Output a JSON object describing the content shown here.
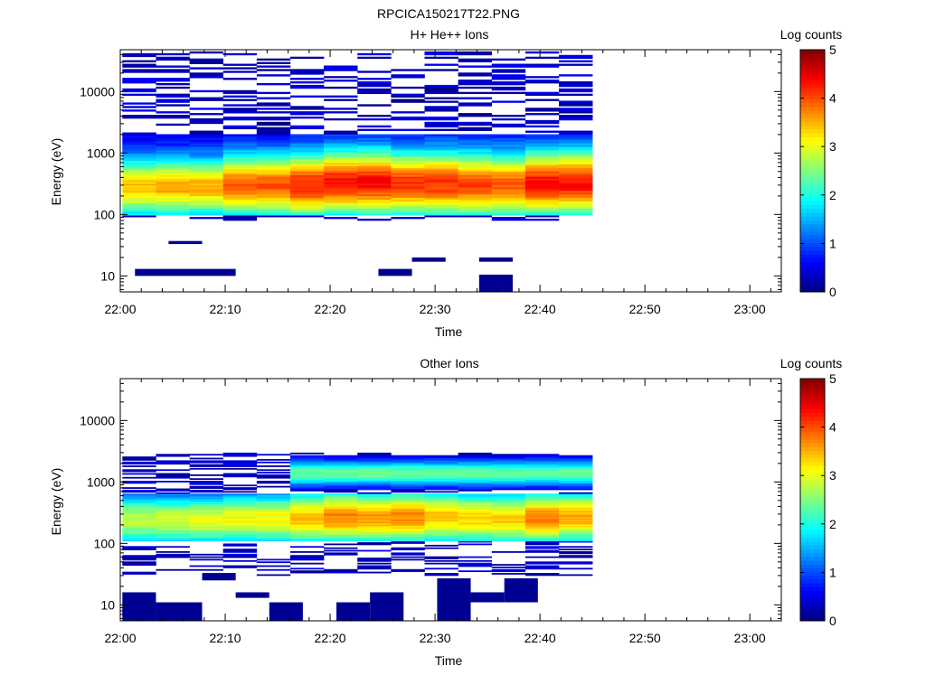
{
  "figure_title": "RPCICA150217T22.PNG",
  "colors": {
    "colormap": [
      "#00007f",
      "#0000ff",
      "#007fff",
      "#00ffff",
      "#7fff7f",
      "#ffff00",
      "#ff7f00",
      "#ff0000",
      "#7f0000"
    ],
    "axis": "#000000",
    "background": "#ffffff"
  },
  "chart_data": [
    {
      "type": "heatmap",
      "title": "H+ He++ Ions",
      "xlabel": "Time",
      "ylabel": "Energy (eV)",
      "colorbar_label": "Log counts",
      "colorbar_range": [
        0,
        5
      ],
      "colorbar_ticks": [
        "0",
        "1",
        "2",
        "3",
        "4",
        "5"
      ],
      "x_ticks": [
        "22:00",
        "22:10",
        "22:20",
        "22:30",
        "22:40",
        "22:50",
        "23:00"
      ],
      "y_ticks": [
        "10",
        "100",
        "1000",
        "10000"
      ],
      "y_scale": "log",
      "ylim": [
        5.5,
        48000
      ],
      "xlim": [
        "22:00",
        "23:03"
      ],
      "time_bins_start": [
        "22:00:12",
        "22:03:24",
        "22:06:36",
        "22:09:48",
        "22:13:00",
        "22:16:12",
        "22:19:24",
        "22:22:36",
        "22:25:48",
        "22:29:00",
        "22:32:12",
        "22:35:24",
        "22:38:36",
        "22:41:48"
      ],
      "profiles": [
        {
          "peak_energy_eV": 280,
          "peak_log_counts": 3.0,
          "width": 0.34
        },
        {
          "peak_energy_eV": 280,
          "peak_log_counts": 3.1,
          "width": 0.34
        },
        {
          "peak_energy_eV": 280,
          "peak_log_counts": 3.1,
          "width": 0.34
        },
        {
          "peak_energy_eV": 300,
          "peak_log_counts": 3.5,
          "width": 0.36
        },
        {
          "peak_energy_eV": 300,
          "peak_log_counts": 3.5,
          "width": 0.36
        },
        {
          "peak_energy_eV": 300,
          "peak_log_counts": 3.8,
          "width": 0.38
        },
        {
          "peak_energy_eV": 330,
          "peak_log_counts": 3.9,
          "width": 0.38
        },
        {
          "peak_energy_eV": 330,
          "peak_log_counts": 3.9,
          "width": 0.38
        },
        {
          "peak_energy_eV": 320,
          "peak_log_counts": 3.7,
          "width": 0.38
        },
        {
          "peak_energy_eV": 320,
          "peak_log_counts": 3.7,
          "width": 0.38
        },
        {
          "peak_energy_eV": 300,
          "peak_log_counts": 3.6,
          "width": 0.38
        },
        {
          "peak_energy_eV": 300,
          "peak_log_counts": 3.5,
          "width": 0.38
        },
        {
          "peak_energy_eV": 320,
          "peak_log_counts": 3.9,
          "width": 0.38
        },
        {
          "peak_energy_eV": 330,
          "peak_log_counts": 3.9,
          "width": 0.38
        }
      ],
      "main_band_range_eV": [
        100,
        2000
      ],
      "sparse_range_eV": [
        80,
        45000
      ],
      "low_energy_patches": [
        {
          "time_start": "22:01:24",
          "time_end": "22:11:00",
          "energy_low_eV": 10,
          "energy_high_eV": 13
        },
        {
          "time_start": "22:04:36",
          "time_end": "22:07:48",
          "energy_low_eV": 33,
          "energy_high_eV": 37
        },
        {
          "time_start": "22:24:36",
          "time_end": "22:27:48",
          "energy_low_eV": 10,
          "energy_high_eV": 13
        },
        {
          "time_start": "22:27:48",
          "time_end": "22:31:00",
          "energy_low_eV": 17,
          "energy_high_eV": 20
        },
        {
          "time_start": "22:34:12",
          "time_end": "22:37:24",
          "energy_low_eV": 17,
          "energy_high_eV": 20
        },
        {
          "time_start": "22:34:12",
          "time_end": "22:37:24",
          "energy_low_eV": 5.5,
          "energy_high_eV": 10.5
        }
      ]
    },
    {
      "type": "heatmap",
      "title": "Other Ions",
      "xlabel": "Time",
      "ylabel": "Energy (eV)",
      "colorbar_label": "Log counts",
      "colorbar_range": [
        0,
        5
      ],
      "colorbar_ticks": [
        "0",
        "1",
        "2",
        "3",
        "4",
        "5"
      ],
      "x_ticks": [
        "22:00",
        "22:10",
        "22:20",
        "22:30",
        "22:40",
        "22:50",
        "23:00"
      ],
      "y_ticks": [
        "10",
        "100",
        "1000",
        "10000"
      ],
      "y_scale": "log",
      "ylim": [
        5.5,
        48000
      ],
      "xlim": [
        "22:00",
        "23:03"
      ],
      "time_bins_start": [
        "22:00:12",
        "22:03:24",
        "22:06:36",
        "22:09:48",
        "22:13:00",
        "22:16:12",
        "22:19:24",
        "22:22:36",
        "22:25:48",
        "22:29:00",
        "22:32:12",
        "22:35:24",
        "22:38:36",
        "22:41:48"
      ],
      "profiles": [
        {
          "peak_energy_eV": 240,
          "peak_log_counts": 2.4,
          "width": 0.28
        },
        {
          "peak_energy_eV": 240,
          "peak_log_counts": 2.5,
          "width": 0.28
        },
        {
          "peak_energy_eV": 240,
          "peak_log_counts": 2.6,
          "width": 0.28
        },
        {
          "peak_energy_eV": 250,
          "peak_log_counts": 2.7,
          "width": 0.28
        },
        {
          "peak_energy_eV": 250,
          "peak_log_counts": 2.7,
          "width": 0.28
        },
        {
          "peak_energy_eV": 260,
          "peak_log_counts": 3.0,
          "width": 0.3
        },
        {
          "peak_energy_eV": 270,
          "peak_log_counts": 3.3,
          "width": 0.3
        },
        {
          "peak_energy_eV": 260,
          "peak_log_counts": 3.2,
          "width": 0.3
        },
        {
          "peak_energy_eV": 270,
          "peak_log_counts": 3.3,
          "width": 0.3
        },
        {
          "peak_energy_eV": 270,
          "peak_log_counts": 3.0,
          "width": 0.3
        },
        {
          "peak_energy_eV": 260,
          "peak_log_counts": 2.9,
          "width": 0.3
        },
        {
          "peak_energy_eV": 250,
          "peak_log_counts": 2.9,
          "width": 0.3
        },
        {
          "peak_energy_eV": 260,
          "peak_log_counts": 3.3,
          "width": 0.3
        },
        {
          "peak_energy_eV": 270,
          "peak_log_counts": 3.1,
          "width": 0.3
        }
      ],
      "upper_band": {
        "start_bin": 5,
        "energy_eV": 1400,
        "peak_log_counts": 2.4,
        "width": 0.16
      },
      "main_band_range_eV": [
        110,
        650
      ],
      "sparse_range_eV": [
        30,
        3000
      ],
      "low_energy_patches": [
        {
          "time_start": "22:00:12",
          "time_end": "22:03:24",
          "energy_low_eV": 5.5,
          "energy_high_eV": 16
        },
        {
          "time_start": "22:03:24",
          "time_end": "22:07:48",
          "energy_low_eV": 5.5,
          "energy_high_eV": 11
        },
        {
          "time_start": "22:07:48",
          "time_end": "22:11:00",
          "energy_low_eV": 25,
          "energy_high_eV": 33
        },
        {
          "time_start": "22:11:00",
          "time_end": "22:14:12",
          "energy_low_eV": 13,
          "energy_high_eV": 16
        },
        {
          "time_start": "22:14:12",
          "time_end": "22:17:24",
          "energy_low_eV": 5.5,
          "energy_high_eV": 11
        },
        {
          "time_start": "22:20:36",
          "time_end": "22:23:48",
          "energy_low_eV": 5.5,
          "energy_high_eV": 11
        },
        {
          "time_start": "22:23:48",
          "time_end": "22:27:00",
          "energy_low_eV": 5.5,
          "energy_high_eV": 16
        },
        {
          "time_start": "22:30:12",
          "time_end": "22:33:24",
          "energy_low_eV": 5.5,
          "energy_high_eV": 27
        },
        {
          "time_start": "22:33:24",
          "time_end": "22:36:36",
          "energy_low_eV": 11,
          "energy_high_eV": 16
        },
        {
          "time_start": "22:36:36",
          "time_end": "22:39:48",
          "energy_low_eV": 11,
          "energy_high_eV": 27
        }
      ]
    }
  ]
}
